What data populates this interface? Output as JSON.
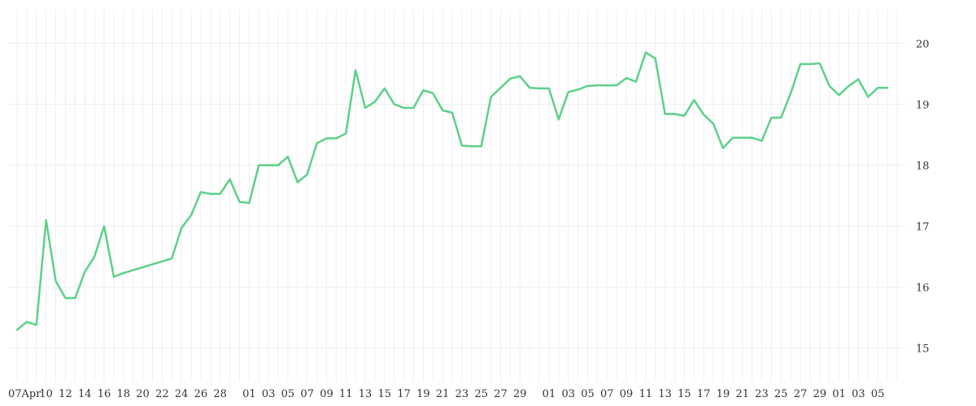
{
  "chart_data": {
    "type": "line",
    "title": "",
    "xlabel": "",
    "ylabel": "",
    "ylim": [
      14.45,
      20.55
    ],
    "y_ticks": [
      15,
      16,
      17,
      18,
      19,
      20
    ],
    "y_axis_position": "right",
    "grid": true,
    "legend": "none",
    "x_tick_labels": [
      "07Apr",
      "10",
      "12",
      "14",
      "16",
      "18",
      "20",
      "22",
      "24",
      "26",
      "28",
      "01",
      "03",
      "05",
      "07",
      "09",
      "11",
      "13",
      "15",
      "17",
      "19",
      "21",
      "23",
      "25",
      "27",
      "29",
      "01",
      "03",
      "05",
      "07",
      "09",
      "11",
      "13",
      "15",
      "17",
      "19",
      "21",
      "23",
      "25",
      "27",
      "29",
      "01",
      "03",
      "05"
    ],
    "series": [
      {
        "color": "#5cd187",
        "values": [
          15.3,
          15.43,
          15.38,
          17.1,
          16.1,
          15.82,
          15.82,
          16.25,
          16.5,
          17.0,
          16.17,
          16.23,
          16.47,
          16.97,
          17.18,
          17.56,
          17.53,
          17.53,
          17.77,
          17.4,
          17.38,
          18.0,
          18.0,
          18.0,
          18.14,
          17.72,
          17.85,
          18.36,
          18.44,
          18.44,
          18.52,
          19.56,
          18.94,
          19.04,
          19.26,
          19.0,
          18.94,
          18.94,
          19.23,
          19.18,
          18.9,
          18.86,
          18.32,
          18.31,
          18.31,
          19.12,
          19.27,
          19.42,
          19.46,
          19.27,
          19.26,
          19.26,
          18.75,
          19.2,
          19.24,
          19.3,
          19.31,
          19.31,
          19.31,
          19.43,
          19.37,
          19.85,
          19.75,
          18.84,
          18.84,
          18.81,
          19.07,
          18.83,
          18.68,
          18.28,
          18.45,
          18.45,
          18.45,
          18.4,
          18.78,
          18.78,
          19.18,
          19.66,
          19.66,
          19.67,
          19.3,
          19.15,
          19.3,
          19.41,
          19.12,
          19.27,
          19.27
        ],
        "x_positions": [
          0,
          1,
          2,
          3,
          4,
          5,
          6,
          7,
          8,
          9,
          10,
          11,
          16,
          17,
          18,
          19,
          20,
          21,
          22,
          23,
          24,
          25,
          26,
          27,
          28,
          29,
          30,
          31,
          32,
          33,
          34,
          35,
          36,
          37,
          38,
          39,
          40,
          41,
          42,
          43,
          44,
          45,
          46,
          47,
          48,
          49,
          50,
          51,
          52,
          53,
          54,
          55,
          56,
          57,
          58,
          59,
          60,
          61,
          62,
          63,
          64,
          65,
          66,
          67,
          68,
          69,
          70,
          71,
          72,
          73,
          74,
          75,
          76,
          77,
          78,
          79,
          80,
          81,
          82,
          83,
          84,
          85,
          86,
          87,
          88,
          89,
          90
        ]
      }
    ]
  }
}
